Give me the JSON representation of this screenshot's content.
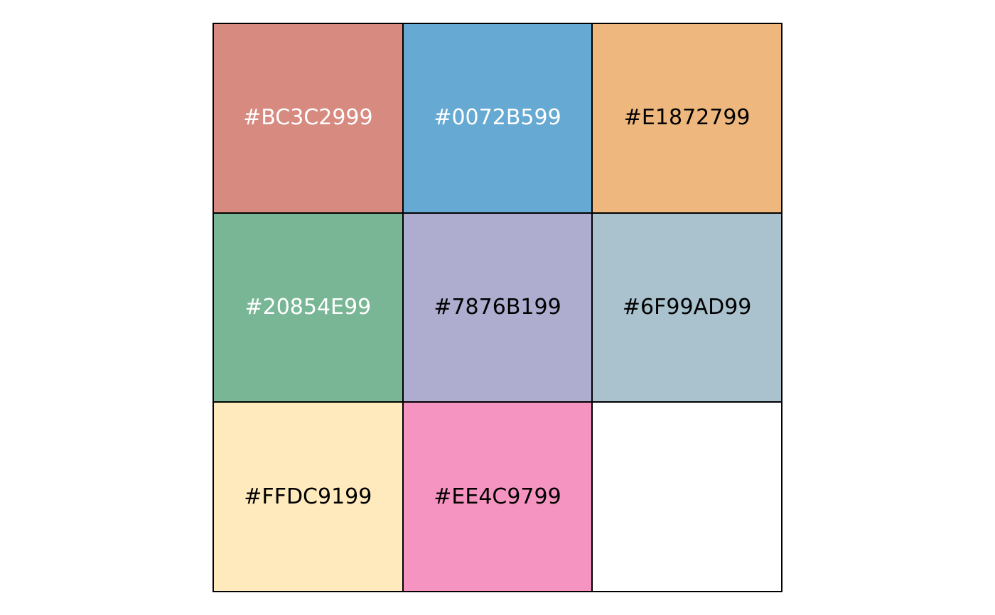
{
  "swatches": [
    {
      "label": "#BC3C2999",
      "fill": "#D78A7F",
      "text_color": "#FFFFFF"
    },
    {
      "label": "#0072B599",
      "fill": "#66A9D3",
      "text_color": "#FFFFFF"
    },
    {
      "label": "#E1872799",
      "fill": "#EEB77E",
      "text_color": "#000000"
    },
    {
      "label": "#20854E99",
      "fill": "#79B695",
      "text_color": "#FFFFFF"
    },
    {
      "label": "#7876B199",
      "fill": "#AEADCF",
      "text_color": "#000000"
    },
    {
      "label": "#6F99AD99",
      "fill": "#A9C2CE",
      "text_color": "#000000"
    },
    {
      "label": "#FFDC9199",
      "fill": "#FFEABD",
      "text_color": "#000000"
    },
    {
      "label": "#EE4C9799",
      "fill": "#F594C1",
      "text_color": "#000000"
    },
    {
      "label": "",
      "fill": "#FFFFFF",
      "text_color": "#000000"
    }
  ]
}
